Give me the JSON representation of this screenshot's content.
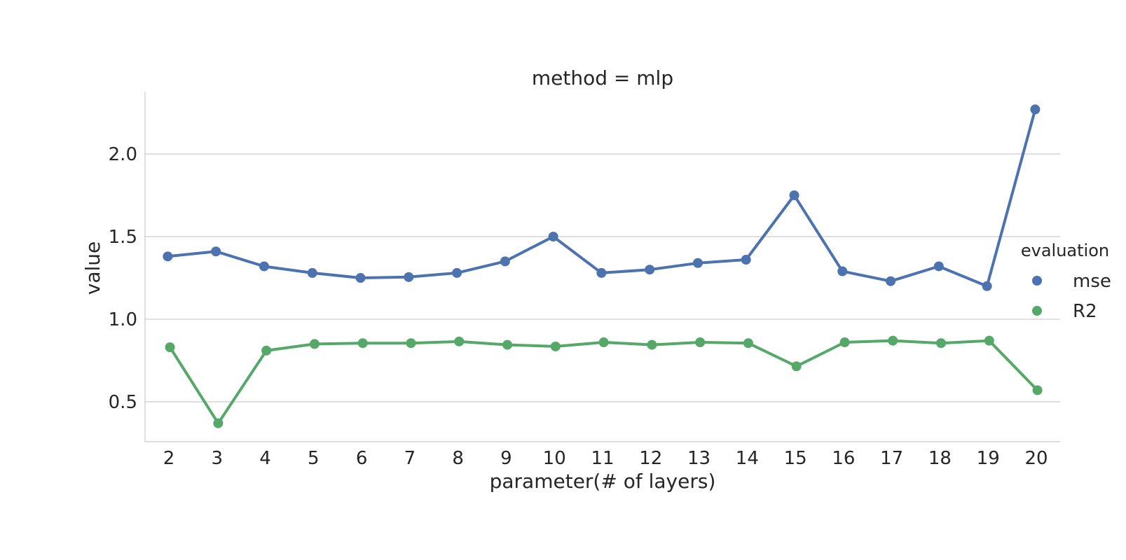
{
  "chart_data": {
    "type": "line",
    "title": "method = mlp",
    "xlabel": "parameter(# of layers)",
    "ylabel": "value",
    "categories": [
      "2",
      "3",
      "4",
      "5",
      "6",
      "7",
      "8",
      "9",
      "10",
      "11",
      "12",
      "13",
      "14",
      "15",
      "16",
      "17",
      "18",
      "19",
      "20"
    ],
    "y_ticks": [
      "0.5",
      "1.0",
      "1.5",
      "2.0"
    ],
    "ylim": [
      0.25,
      2.38
    ],
    "grid": "horizontal",
    "legend": {
      "title": "evaluation",
      "placement": "right"
    },
    "series": [
      {
        "name": "mse",
        "color": "#4c72b0",
        "values": [
          1.38,
          1.41,
          1.32,
          1.28,
          1.25,
          1.255,
          1.28,
          1.35,
          1.5,
          1.28,
          1.3,
          1.34,
          1.36,
          1.75,
          1.29,
          1.23,
          1.32,
          1.2,
          2.27
        ]
      },
      {
        "name": "R2",
        "color": "#55a868",
        "values": [
          0.83,
          0.37,
          0.81,
          0.85,
          0.855,
          0.855,
          0.865,
          0.845,
          0.835,
          0.86,
          0.845,
          0.86,
          0.855,
          0.715,
          0.86,
          0.87,
          0.855,
          0.87,
          0.57
        ]
      }
    ]
  }
}
